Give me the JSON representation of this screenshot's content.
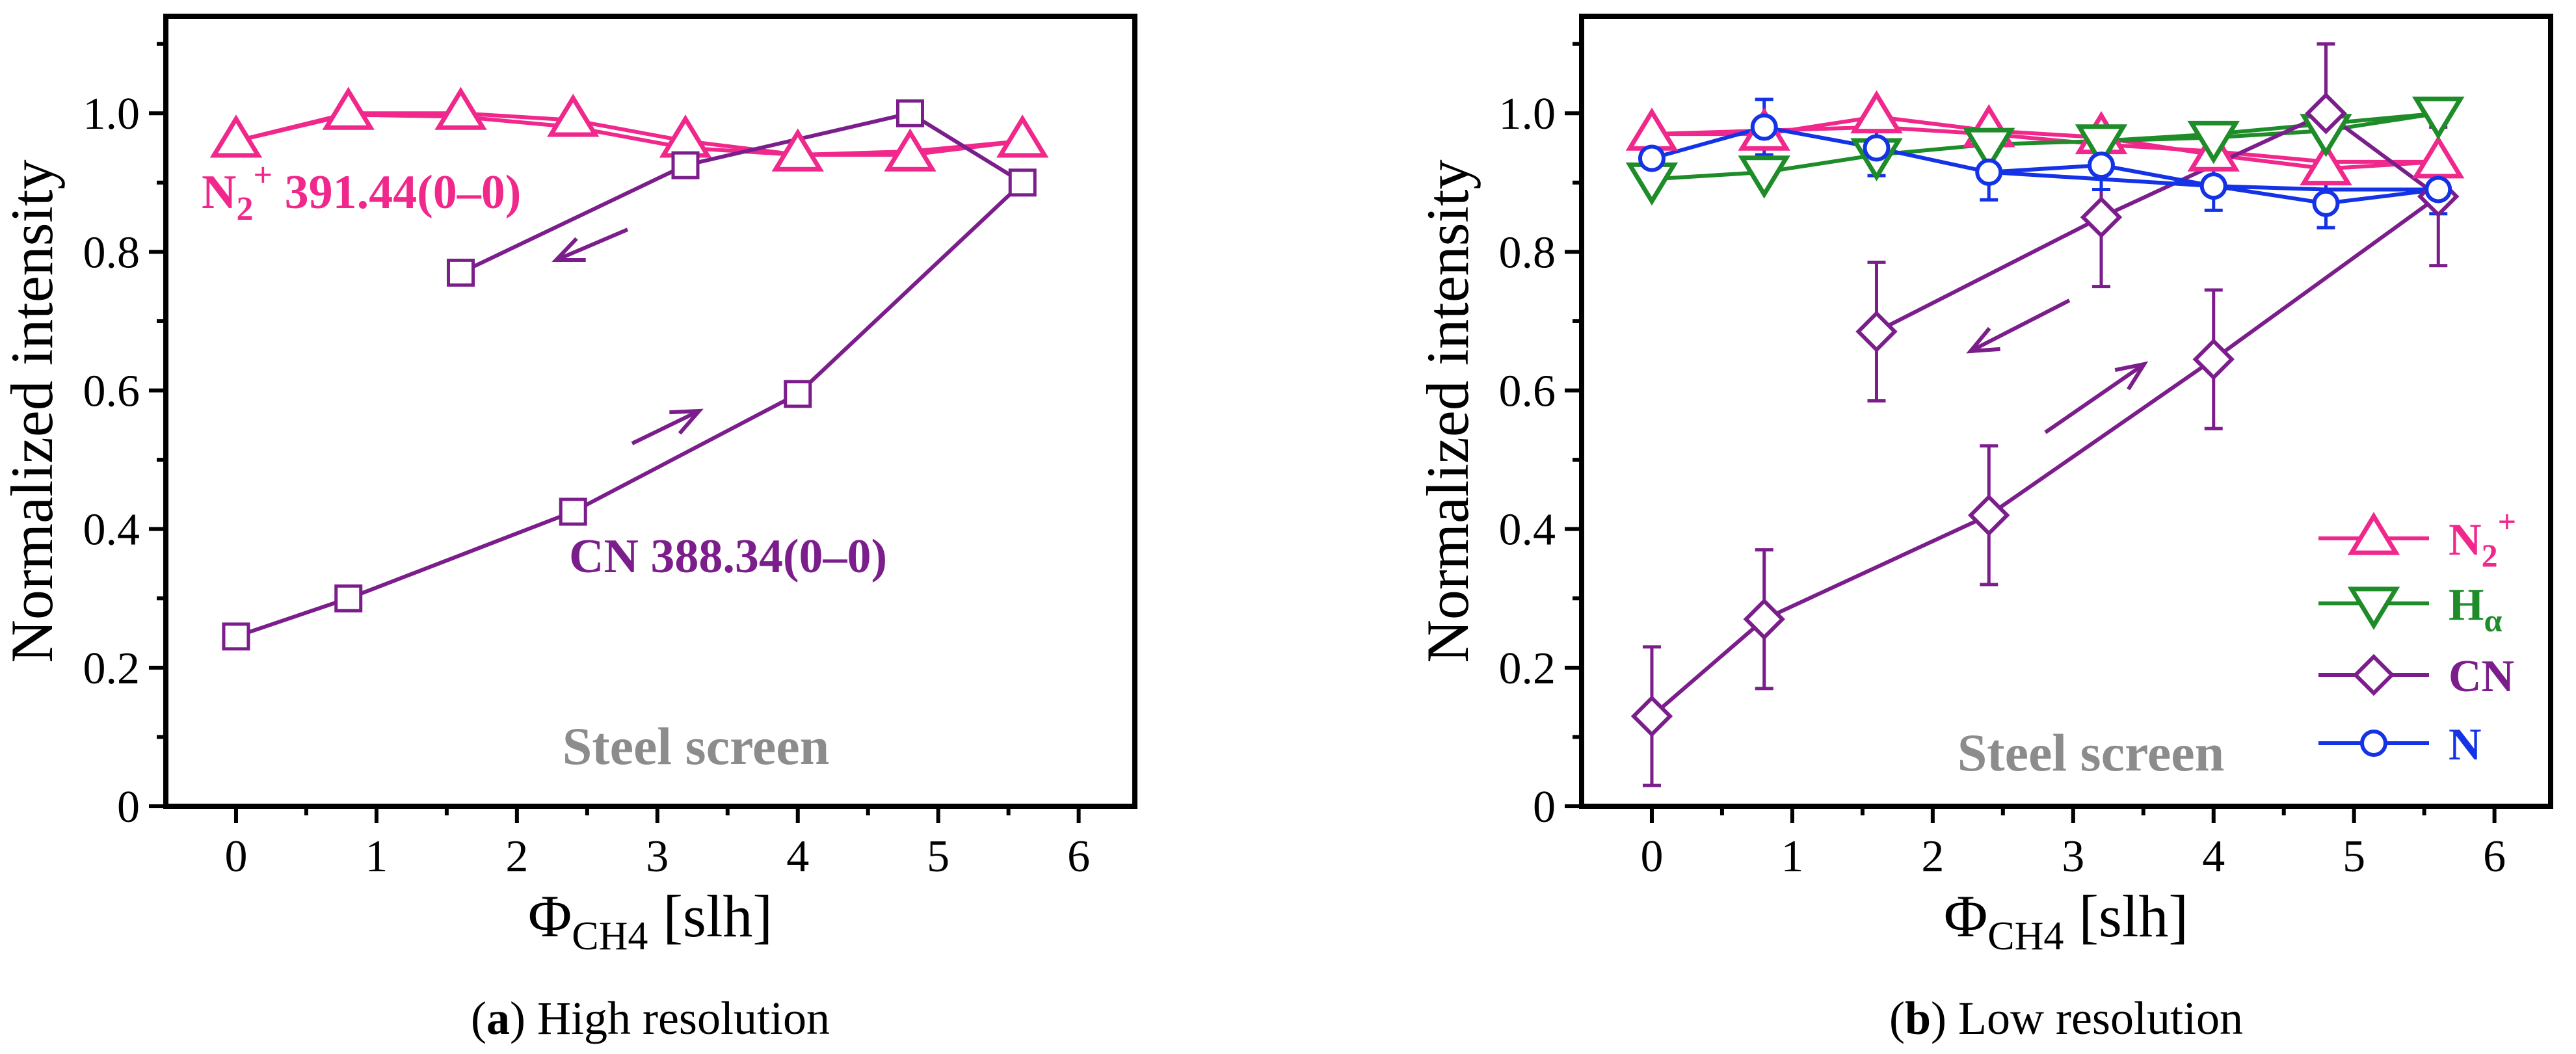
{
  "chart_data": [
    {
      "panel": "a",
      "type": "line",
      "caption_letter": "a",
      "caption_text": ") High resolution",
      "caption_open": "(",
      "xlabel_main": "Φ",
      "xlabel_sub": "CH4",
      "xlabel_unit": " [slh]",
      "ylabel": "Normalized intensity",
      "xlim": [
        -0.5,
        6.4
      ],
      "ylim": [
        0,
        1.14
      ],
      "xticks": [
        0,
        1,
        2,
        3,
        4,
        5,
        6
      ],
      "yticks": [
        0,
        0.2,
        0.4,
        0.6,
        0.8,
        1.0
      ],
      "ytick_labels": [
        "0",
        "0.2",
        "0.4",
        "0.6",
        "0.8",
        "1.0"
      ],
      "series": [
        {
          "name": "N2+ 391.44(0–0)",
          "marker": "triangle-up",
          "color": "#f0288c",
          "x": [
            0,
            0.8,
            1.6,
            2.4,
            3.2,
            4.0,
            4.8,
            5.6
          ],
          "y": [
            0.96,
            1.0,
            1.0,
            0.99,
            0.96,
            0.94,
            0.94,
            0.96
          ],
          "path_x": [
            0,
            0.8,
            1.6,
            2.4,
            3.2,
            4.0,
            4.8,
            5.6,
            4.8,
            4.0,
            3.2,
            2.4,
            1.6,
            0.8,
            0
          ],
          "path_y": [
            0.96,
            1.0,
            1.0,
            0.99,
            0.96,
            0.94,
            0.94,
            0.96,
            0.945,
            0.94,
            0.95,
            0.98,
            0.995,
            0.998,
            0.96
          ]
        },
        {
          "name": "CN 388.34(0–0)",
          "marker": "square",
          "color": "#7b1e8c",
          "x": [
            0,
            0.8,
            2.4,
            4.0,
            5.6,
            4.8,
            3.2,
            1.6
          ],
          "y": [
            0.245,
            0.3,
            0.425,
            0.595,
            0.9,
            1.0,
            0.925,
            0.77
          ],
          "path_x": [
            0,
            0.8,
            2.4,
            4.0,
            5.6,
            4.8,
            3.2,
            1.6
          ],
          "path_y": [
            0.245,
            0.3,
            0.425,
            0.595,
            0.9,
            1.0,
            0.925,
            0.77
          ]
        }
      ],
      "annotations": {
        "n2_prefix": "N",
        "n2_sub": "2",
        "n2_sup": "+",
        "n2_rest": " 391.44(0–0)",
        "cn_label": "CN 388.34(0–0)",
        "steel": "Steel screen"
      }
    },
    {
      "panel": "b",
      "type": "line",
      "caption_letter": "b",
      "caption_text": ") Low resolution",
      "caption_open": "(",
      "xlabel_main": "Φ",
      "xlabel_sub": "CH4",
      "xlabel_unit": " [slh]",
      "ylabel": "Normalized intensity",
      "xlim": [
        -0.5,
        6.4
      ],
      "ylim": [
        0,
        1.14
      ],
      "xticks": [
        0,
        1,
        2,
        3,
        4,
        5,
        6
      ],
      "yticks": [
        0,
        0.2,
        0.4,
        0.6,
        0.8,
        1.0
      ],
      "ytick_labels": [
        "0",
        "0.2",
        "0.4",
        "0.6",
        "0.8",
        "1.0"
      ],
      "series": [
        {
          "name": "N2+",
          "marker": "triangle-up",
          "color": "#f0288c",
          "x": [
            0,
            0.8,
            1.6,
            2.4,
            3.2,
            4.0,
            4.8,
            5.6
          ],
          "y": [
            0.97,
            0.97,
            0.995,
            0.975,
            0.965,
            0.94,
            0.92,
            0.93
          ],
          "path_x": [
            0,
            0.8,
            1.6,
            2.4,
            3.2,
            4.0,
            4.8,
            5.6,
            4.8,
            4.0,
            3.2,
            2.4,
            1.6,
            0.8,
            0
          ],
          "path_y": [
            0.97,
            0.97,
            0.995,
            0.975,
            0.965,
            0.94,
            0.92,
            0.93,
            0.93,
            0.945,
            0.955,
            0.97,
            0.98,
            0.975,
            0.97
          ]
        },
        {
          "name": "Hα",
          "marker": "triangle-down",
          "color": "#1e8c28",
          "x": [
            0,
            0.8,
            1.6,
            2.4,
            3.2,
            4.0,
            4.8,
            5.6
          ],
          "y": [
            0.905,
            0.915,
            0.94,
            0.955,
            0.96,
            0.965,
            0.975,
            1.0
          ],
          "path_x": [
            0,
            0.8,
            1.6,
            2.4,
            3.2,
            4.0,
            4.8,
            5.6,
            4.8,
            4.0,
            3.2,
            2.4,
            1.6
          ],
          "path_y": [
            0.905,
            0.915,
            0.94,
            0.955,
            0.96,
            0.965,
            0.975,
            1.0,
            0.985,
            0.97,
            0.96,
            0.955,
            0.94
          ]
        },
        {
          "name": "CN",
          "marker": "diamond",
          "color": "#7b1e8c",
          "x": [
            0,
            0.8,
            2.4,
            4.0,
            5.6,
            4.8,
            3.2,
            1.6
          ],
          "y": [
            0.13,
            0.27,
            0.42,
            0.645,
            0.88,
            1.0,
            0.85,
            0.685
          ],
          "err": [
            0.1,
            0.1,
            0.1,
            0.1,
            0.1,
            0.1,
            0.1,
            0.1
          ],
          "path_x": [
            0,
            0.8,
            2.4,
            4.0,
            5.6,
            4.8,
            3.2,
            1.6
          ],
          "path_y": [
            0.13,
            0.27,
            0.42,
            0.645,
            0.88,
            1.0,
            0.85,
            0.685
          ]
        },
        {
          "name": "N",
          "marker": "circle",
          "color": "#1432e6",
          "x": [
            0,
            0.8,
            1.6,
            2.4,
            3.2,
            4.0,
            4.8,
            5.6
          ],
          "y": [
            0.935,
            0.98,
            0.95,
            0.915,
            0.925,
            0.895,
            0.87,
            0.89
          ],
          "err": [
            0.035,
            0.04,
            0.04,
            0.04,
            0.035,
            0.035,
            0.035,
            0.035
          ],
          "path_x": [
            0,
            0.8,
            1.6,
            2.4,
            3.2,
            4.0,
            4.8,
            5.6,
            4.8,
            4.0,
            3.2,
            2.4,
            1.6
          ],
          "path_y": [
            0.935,
            0.98,
            0.95,
            0.915,
            0.925,
            0.895,
            0.87,
            0.89,
            0.89,
            0.895,
            0.905,
            0.915,
            0.95
          ]
        }
      ],
      "legend": [
        {
          "key": "n2",
          "main": "N",
          "sub": "2",
          "sup": "+"
        },
        {
          "key": "ha",
          "main": "H",
          "sub": "α",
          "sup": ""
        },
        {
          "key": "cn",
          "main": "CN",
          "sub": "",
          "sup": ""
        },
        {
          "key": "n",
          "main": "N",
          "sub": "",
          "sup": ""
        }
      ],
      "legend_position": "bottom-right",
      "annotations": {
        "steel": "Steel screen"
      }
    }
  ]
}
